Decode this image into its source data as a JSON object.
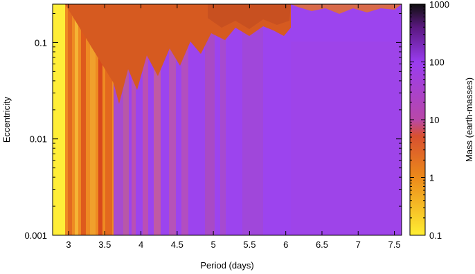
{
  "chart_data": {
    "type": "heatmap",
    "title": "",
    "xlabel": "Period (days)",
    "ylabel": "Eccentricity",
    "xlim": [
      2.78,
      7.6
    ],
    "ylim": [
      0.001,
      0.25
    ],
    "yscale": "log",
    "x_ticks": [
      3,
      3.5,
      4,
      4.5,
      5,
      5.5,
      6,
      6.5,
      7,
      7.5
    ],
    "x_tick_labels": [
      "3",
      "3.5",
      "4",
      "4.5",
      "5",
      "5.5",
      "6",
      "6.5",
      "7",
      "7.5"
    ],
    "y_ticks": [
      0.001,
      0.01,
      0.1
    ],
    "y_tick_labels": [
      "0.001",
      "0.01",
      "0.1"
    ],
    "colorbar": {
      "label": "Mass (earth-masses)",
      "scale": "log",
      "range": [
        0.1,
        1000
      ],
      "ticks": [
        0.1,
        1,
        10,
        100,
        1000
      ],
      "tick_labels": [
        "0.1",
        "1",
        "10",
        "100",
        "1000"
      ],
      "colormap": [
        {
          "value": 0.1,
          "color": "#ffee33"
        },
        {
          "value": 1,
          "color": "#ec8a1a"
        },
        {
          "value": 10,
          "color": "#d85030"
        },
        {
          "value": 15,
          "color": "#b848a8"
        },
        {
          "value": 100,
          "color": "#9a3cf0"
        },
        {
          "value": 400,
          "color": "#5a1880"
        },
        {
          "value": 1000,
          "color": "#101010"
        }
      ]
    },
    "grid": false,
    "regions": [
      {
        "description_value": "mass near 0.1-0.3 earth-masses",
        "x_range": [
          2.78,
          2.95
        ],
        "y_range": [
          0.001,
          0.25
        ]
      },
      {
        "description_value": "mass near 1-10 earth-masses",
        "x_range": [
          2.95,
          3.7
        ],
        "y_range": [
          0.001,
          0.25
        ]
      },
      {
        "description_value": "mass near 10-50 earth-masses",
        "x_range": [
          3.7,
          7.6
        ],
        "y_range": [
          0.001,
          0.25
        ]
      }
    ]
  }
}
